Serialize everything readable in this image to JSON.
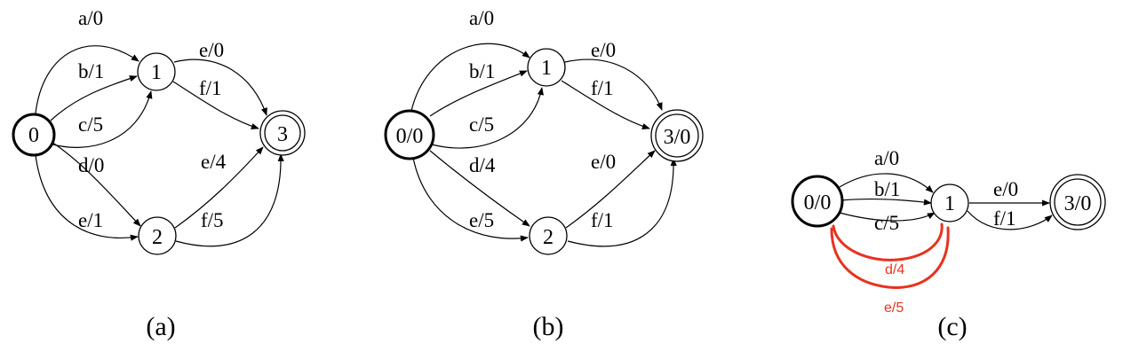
{
  "colors": {
    "ink": "#000000",
    "annotation": "#e8321e"
  },
  "panels": [
    {
      "caption": "(a)",
      "nodes": [
        "0",
        "1",
        "2",
        "3"
      ],
      "edges": [
        "a/0",
        "b/1",
        "c/5",
        "d/0",
        "e/1",
        "e/0",
        "f/1",
        "e/4",
        "f/5"
      ]
    },
    {
      "caption": "(b)",
      "nodes": [
        "0/0",
        "1",
        "2",
        "3/0"
      ],
      "edges": [
        "a/0",
        "b/1",
        "c/5",
        "d/4",
        "e/5",
        "e/0",
        "f/1",
        "e/0",
        "f/1"
      ]
    },
    {
      "caption": "(c)",
      "nodes": [
        "0/0",
        "1",
        "3/0"
      ],
      "edges": [
        "a/0",
        "b/1",
        "c/5",
        "e/0",
        "f/1"
      ],
      "annotations": [
        "d/4",
        "e/5"
      ]
    }
  ]
}
